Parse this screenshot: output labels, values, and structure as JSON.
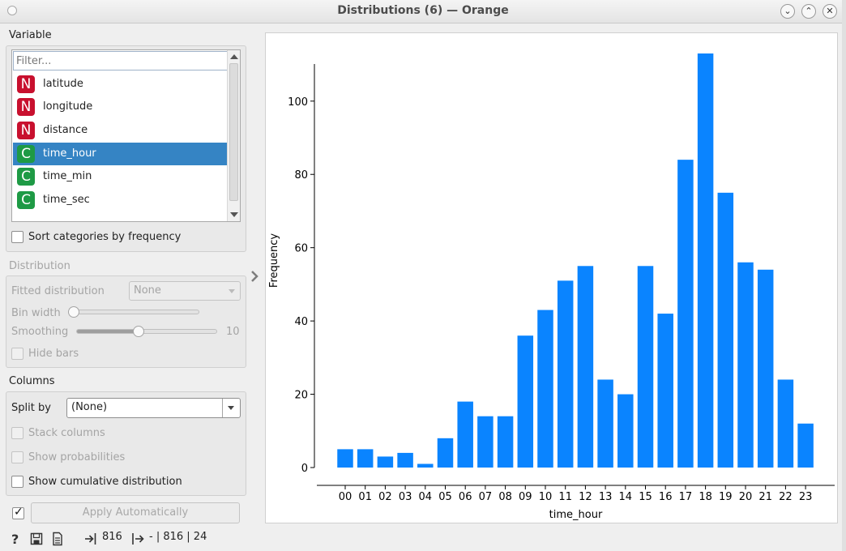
{
  "window": {
    "title": "Distributions (6) — Orange",
    "buttons": [
      "⌄",
      "⌃",
      "✕"
    ]
  },
  "variable": {
    "section_label": "Variable",
    "filter_placeholder": "Filter...",
    "items": [
      {
        "type": "N",
        "label": "latitude",
        "selected": false
      },
      {
        "type": "N",
        "label": "longitude",
        "selected": false
      },
      {
        "type": "N",
        "label": "distance",
        "selected": false
      },
      {
        "type": "C",
        "label": "time_hour",
        "selected": true
      },
      {
        "type": "C",
        "label": "time_min",
        "selected": false
      },
      {
        "type": "C",
        "label": "time_sec",
        "selected": false
      }
    ],
    "sort_label": "Sort categories by frequency"
  },
  "distribution": {
    "section_label": "Distribution",
    "fitted_label": "Fitted distribution",
    "fitted_value": "None",
    "bin_width_label": "Bin width",
    "bin_width_level": 0,
    "smoothing_label": "Smoothing",
    "smoothing_value": "10",
    "smoothing_level": 0.45,
    "hide_bars_label": "Hide bars"
  },
  "columns": {
    "section_label": "Columns",
    "split_by_label": "Split by",
    "split_by_value": "(None)",
    "stack_label": "Stack columns",
    "probabilities_label": "Show probabilities",
    "cumulative_label": "Show cumulative distribution"
  },
  "apply": {
    "checked": true,
    "label": "Apply Automatically"
  },
  "status": {
    "input_count": "816",
    "output_text": "- | 816 | 24"
  },
  "colors": {
    "bar": "#0a84ff",
    "selection": "#3584c4",
    "numeric_badge": "#c8102e",
    "categorical_badge": "#1e9a45"
  },
  "chart_data": {
    "type": "bar",
    "xlabel": "time_hour",
    "ylabel": "Frequency",
    "categories": [
      "00",
      "01",
      "02",
      "03",
      "04",
      "05",
      "06",
      "07",
      "08",
      "09",
      "10",
      "11",
      "12",
      "13",
      "14",
      "15",
      "16",
      "17",
      "18",
      "19",
      "20",
      "21",
      "22",
      "23"
    ],
    "values": [
      5,
      5,
      3,
      4,
      1,
      8,
      18,
      14,
      14,
      36,
      43,
      51,
      55,
      24,
      20,
      55,
      42,
      84,
      113,
      75,
      56,
      54,
      24,
      12
    ],
    "yticks": [
      0,
      20,
      40,
      60,
      80,
      100
    ],
    "ylim": [
      0,
      113
    ],
    "grid": false
  }
}
